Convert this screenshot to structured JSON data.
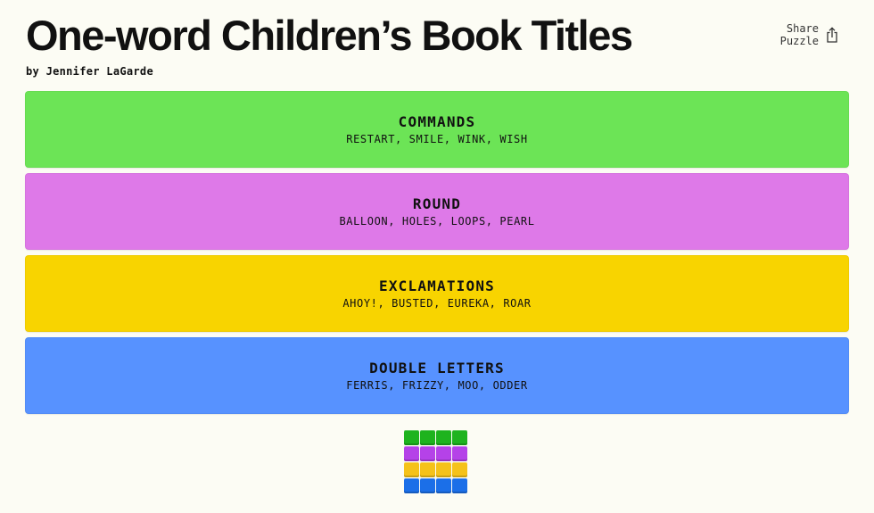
{
  "header": {
    "title": "One-word Children’s Book Titles",
    "byline": "by Jennifer LaGarde",
    "share_line1": "Share",
    "share_line2": "Puzzle",
    "share_icon": "share-icon"
  },
  "groups": [
    {
      "name": "COMMANDS",
      "words": "RESTART, SMILE, WINK, WISH",
      "color": "#6ce456"
    },
    {
      "name": "ROUND",
      "words": "BALLOON, HOLES, LOOPS, PEARL",
      "color": "#de79e8"
    },
    {
      "name": "EXCLAMATIONS",
      "words": "AHOY!, BUSTED, EUREKA, ROAR",
      "color": "#f8d400"
    },
    {
      "name": "DOUBLE LETTERS",
      "words": "FERRIS, FRIZZY, MOO, ODDER",
      "color": "#5792ff"
    }
  ],
  "result_grid": {
    "rows": [
      [
        "green",
        "green",
        "green",
        "green"
      ],
      [
        "purple",
        "purple",
        "purple",
        "purple"
      ],
      [
        "yellow",
        "yellow",
        "yellow",
        "yellow"
      ],
      [
        "blue",
        "blue",
        "blue",
        "blue"
      ]
    ],
    "colors": {
      "green": "#1eb31e",
      "purple": "#b542e8",
      "yellow": "#f5c21a",
      "blue": "#1b6fe8"
    }
  }
}
